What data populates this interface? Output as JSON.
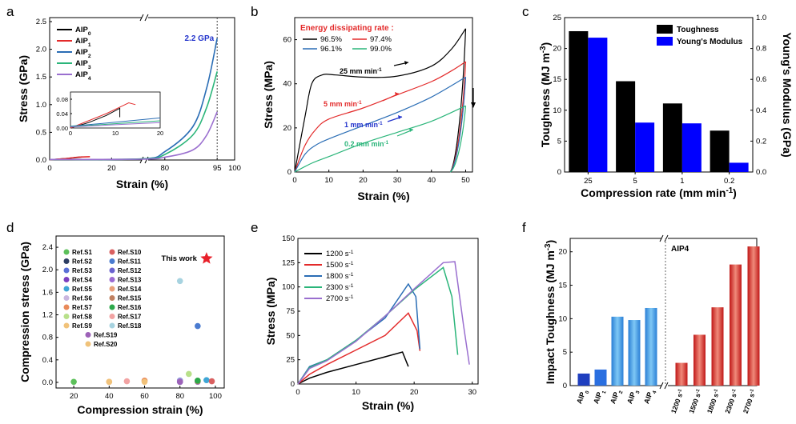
{
  "colors": {
    "AIP0": "#000000",
    "AIP1": "#e32b2b",
    "AIP2": "#2a6db5",
    "AIP3": "#2bb57a",
    "AIP4": "#9a6fcf"
  },
  "panels": {
    "a": "a",
    "b": "b",
    "c": "c",
    "d": "d",
    "e": "e",
    "f": "f"
  },
  "chart_data": [
    {
      "panel": "a",
      "type": "line",
      "xlabel": "Strain (%)",
      "ylabel": "Stress (GPa)",
      "xticks": [
        "0",
        "20",
        "80",
        "95",
        "100"
      ],
      "yticks": [
        "0.0",
        "0.5",
        "1.0",
        "1.5",
        "2.0",
        "2.5"
      ],
      "ylim": [
        0,
        2.5
      ],
      "annotation": "2.2 GPa",
      "legend": [
        {
          "base": "AIP",
          "sub": "0",
          "color": "#000000"
        },
        {
          "base": "AIP",
          "sub": "1",
          "color": "#e32b2b"
        },
        {
          "base": "AIP",
          "sub": "2",
          "color": "#2a6db5"
        },
        {
          "base": "AIP",
          "sub": "3",
          "color": "#2bb57a"
        },
        {
          "base": "AIP",
          "sub": "4",
          "color": "#9a6fcf"
        }
      ],
      "series": [
        {
          "name": "AIP0",
          "x": [
            0,
            4,
            8,
            10.5
          ],
          "y": [
            0.005,
            0.02,
            0.04,
            0.055
          ]
        },
        {
          "name": "AIP1",
          "x": [
            0,
            5,
            9,
            13
          ],
          "y": [
            0.005,
            0.025,
            0.05,
            0.06
          ]
        },
        {
          "name": "AIP2",
          "x": [
            0,
            30,
            80,
            88,
            92,
            95
          ],
          "y": [
            0.01,
            0.02,
            0.15,
            0.6,
            1.3,
            2.2
          ]
        },
        {
          "name": "AIP3",
          "x": [
            0,
            30,
            80,
            88,
            92,
            95
          ],
          "y": [
            0.01,
            0.02,
            0.1,
            0.45,
            0.95,
            1.6
          ]
        },
        {
          "name": "AIP4",
          "x": [
            0,
            30,
            80,
            88,
            92,
            95
          ],
          "y": [
            0.01,
            0.015,
            0.05,
            0.18,
            0.45,
            0.87
          ]
        }
      ],
      "inset": {
        "xticks": [
          "0",
          "10",
          "20"
        ],
        "yticks": [
          "0.00",
          "0.04",
          "0.08"
        ]
      }
    },
    {
      "panel": "b",
      "type": "line",
      "xlabel": "Strain (%)",
      "ylabel": "Stress (MPa)",
      "xticks": [
        "0",
        "10",
        "20",
        "30",
        "40",
        "50"
      ],
      "yticks": [
        "0",
        "20",
        "40",
        "60"
      ],
      "xlim": [
        0,
        52
      ],
      "ylim": [
        0,
        70
      ],
      "legend_title": "Energy dissipating rate :",
      "legend": [
        {
          "label": "96.5%",
          "color": "#000000"
        },
        {
          "label": "97.4%",
          "color": "#e32b2b"
        },
        {
          "label": "96.1%",
          "color": "#2a6db5"
        },
        {
          "label": "99.0%",
          "color": "#2bb57a"
        }
      ],
      "series": [
        {
          "name": "25 mm min-1",
          "color": "#000000",
          "x": [
            0,
            3,
            5,
            8,
            12,
            20,
            30,
            40,
            46,
            50
          ],
          "y": [
            0,
            25,
            40,
            44,
            44,
            43,
            43.5,
            48,
            56,
            65
          ]
        },
        {
          "name": "5 mm min-1",
          "color": "#e32b2b",
          "x": [
            0,
            3,
            6,
            10,
            20,
            30,
            40,
            46,
            50
          ],
          "y": [
            0,
            12,
            19,
            24,
            29,
            35,
            41,
            46,
            50
          ]
        },
        {
          "name": "1 mm min-1",
          "color": "#2a6db5",
          "x": [
            0,
            3,
            6,
            10,
            20,
            30,
            40,
            50
          ],
          "y": [
            0,
            8,
            12,
            15,
            21,
            27,
            34,
            43
          ]
        },
        {
          "name": "0.2 mm min-1",
          "color": "#2bb57a",
          "x": [
            0,
            5,
            10,
            20,
            30,
            40,
            50
          ],
          "y": [
            0,
            4,
            7,
            13,
            18,
            23,
            30
          ]
        }
      ],
      "labels": {
        "l25": "25 mm min",
        "l5": "5 mm min",
        "l1": "1 mm min",
        "l02": "0.2 mm min",
        "unit_sup": "-1"
      }
    },
    {
      "panel": "c",
      "type": "bar",
      "xlabel": "Compression rate (mm min",
      "xlabel_sup": "-1",
      "xlabel_tail": ")",
      "ylabel": "Toughness (MJ m",
      "ylabel_sup": "-3",
      "ylabel_tail": ")",
      "y2label": "Young's Modulus (GPa)",
      "categories": [
        "25",
        "5",
        "1",
        "0.2"
      ],
      "yticks": [
        "0",
        "5",
        "10",
        "15",
        "20",
        "25"
      ],
      "y2ticks": [
        "0.0",
        "0.2",
        "0.4",
        "0.6",
        "0.8",
        "1.0"
      ],
      "ylim": [
        0,
        25
      ],
      "y2lim": [
        0,
        1.0
      ],
      "series": [
        {
          "name": "Toughness",
          "color": "#000000",
          "values": [
            22.8,
            14.7,
            11.1,
            6.7
          ]
        },
        {
          "name": "Young's Modulus",
          "color": "#0000ff",
          "axis": "right",
          "values": [
            0.87,
            0.32,
            0.315,
            0.06
          ]
        }
      ]
    },
    {
      "panel": "d",
      "type": "scatter",
      "xlabel": "Compression strain (%)",
      "ylabel": "Compression stress (GPa)",
      "xticks": [
        "20",
        "40",
        "60",
        "80",
        "100"
      ],
      "yticks": [
        "0.0",
        "0.4",
        "0.8",
        "1.2",
        "1.6",
        "2.0",
        "2.4"
      ],
      "xlim": [
        10,
        105
      ],
      "ylim": [
        -0.1,
        2.6
      ],
      "this_work": {
        "label": "This work",
        "x": 95,
        "y": 2.2,
        "color": "#e8202a"
      },
      "refs": [
        {
          "label": "Ref.S1",
          "color": "#5cc05a",
          "x": 20,
          "y": 0.01
        },
        {
          "label": "Ref.S2",
          "color": "#2d3e63",
          "x": 80,
          "y": 0.02
        },
        {
          "label": "Ref.S3",
          "color": "#5a6fd6",
          "x": 80,
          "y": 0.03
        },
        {
          "label": "Ref.S4",
          "color": "#7b3fc0",
          "x": 80,
          "y": 0.01
        },
        {
          "label": "Ref.S5",
          "color": "#3fa6d6",
          "x": 95,
          "y": 0.04
        },
        {
          "label": "Ref.S6",
          "color": "#c9b6df",
          "x": 80,
          "y": 0.02
        },
        {
          "label": "Ref.S7",
          "color": "#e98a5a",
          "x": 60,
          "y": 0.03
        },
        {
          "label": "Ref.S8",
          "color": "#b8e08a",
          "x": 85,
          "y": 0.15
        },
        {
          "label": "Ref.S9",
          "color": "#f1c27a",
          "x": 60,
          "y": 0.01
        },
        {
          "label": "Ref.S10",
          "color": "#d96060",
          "x": 98,
          "y": 0.02
        },
        {
          "label": "Ref.S11",
          "color": "#4a7bd0",
          "x": 90,
          "y": 1.0
        },
        {
          "label": "Ref.S12",
          "color": "#6a62cf",
          "x": 80,
          "y": 0.01
        },
        {
          "label": "Ref.S13",
          "color": "#9c6bd2",
          "x": 90,
          "y": 0.01
        },
        {
          "label": "Ref.S14",
          "color": "#e9a07b",
          "x": 40,
          "y": 0.01
        },
        {
          "label": "Ref.S15",
          "color": "#c08060",
          "x": 90,
          "y": 0.02
        },
        {
          "label": "Ref.S16",
          "color": "#2ca84a",
          "x": 90,
          "y": 0.03
        },
        {
          "label": "Ref.S17",
          "color": "#f2a3a3",
          "x": 50,
          "y": 0.02
        },
        {
          "label": "Ref.S18",
          "color": "#a7d3e0",
          "x": 80,
          "y": 1.8
        },
        {
          "label": "Ref.S19",
          "color": "#9d62b8",
          "x": 80,
          "y": 0.01
        },
        {
          "label": "Ref.S20",
          "color": "#f0c27a",
          "x": 40,
          "y": 0.01
        }
      ]
    },
    {
      "panel": "e",
      "type": "line",
      "xlabel": "Strain (%)",
      "ylabel": "Stress (MPa)",
      "xticks": [
        "0",
        "10",
        "20",
        "30"
      ],
      "yticks": [
        "0",
        "25",
        "50",
        "75",
        "100",
        "125",
        "150"
      ],
      "xlim": [
        0,
        31
      ],
      "ylim": [
        0,
        150
      ],
      "series": [
        {
          "name": "1200",
          "color": "#000000",
          "x": [
            0,
            2,
            5,
            10,
            15,
            18,
            19
          ],
          "y": [
            0,
            6,
            12,
            20,
            28,
            33,
            18
          ]
        },
        {
          "name": "1500",
          "color": "#e32b2b",
          "x": [
            0,
            2,
            5,
            10,
            15,
            19,
            20.5,
            21
          ],
          "y": [
            0,
            10,
            20,
            35,
            50,
            73,
            55,
            34
          ]
        },
        {
          "name": "1800",
          "color": "#2a6db5",
          "x": [
            0,
            2,
            5,
            10,
            15,
            19,
            20.3,
            21
          ],
          "y": [
            0,
            18,
            25,
            45,
            68,
            103,
            90,
            36
          ]
        },
        {
          "name": "2300",
          "color": "#2bb57a",
          "x": [
            0,
            2,
            5,
            10,
            15,
            20,
            25,
            26.5,
            27.5
          ],
          "y": [
            0,
            17,
            25,
            45,
            70,
            97,
            120,
            90,
            30
          ]
        },
        {
          "name": "2700",
          "color": "#9a6fcf",
          "x": [
            0,
            2,
            5,
            10,
            15,
            20,
            25,
            27,
            28.5,
            29.5
          ],
          "y": [
            0,
            16,
            24,
            44,
            70,
            98,
            125,
            126,
            60,
            20
          ]
        }
      ],
      "legend_unit": "s",
      "legend_sup": "-1"
    },
    {
      "panel": "f",
      "type": "bar",
      "ylabel": "Impact Toughness (MJ m",
      "ylabel_sup": "-3",
      "ylabel_tail": ")",
      "yticks": [
        "0",
        "5",
        "10",
        "15",
        "20"
      ],
      "ylim": [
        0,
        22
      ],
      "annotation": "AIP4",
      "left_categories": [
        {
          "base": "AIP",
          "sub": "0"
        },
        {
          "base": "AIP",
          "sub": "1"
        },
        {
          "base": "AIP",
          "sub": "2"
        },
        {
          "base": "AIP",
          "sub": "3"
        },
        {
          "base": "AIP",
          "sub": "4"
        }
      ],
      "left_values": [
        1.8,
        2.4,
        10.3,
        9.8,
        11.6
      ],
      "left_colors": [
        "#1f3fbf",
        "#2a6fe0",
        "#1e8fe0",
        "#2aa8e8",
        "#3cc0ee"
      ],
      "right_categories": [
        "1200 s",
        "1500 s",
        "1800 s",
        "2300 s",
        "2700 s"
      ],
      "right_sup": "-1",
      "right_values": [
        3.4,
        7.6,
        11.7,
        18.1,
        20.8
      ],
      "right_colors": [
        "#b01a1a",
        "#c41e1e",
        "#d02a2a",
        "#e04a3a",
        "#e46a50"
      ]
    }
  ]
}
